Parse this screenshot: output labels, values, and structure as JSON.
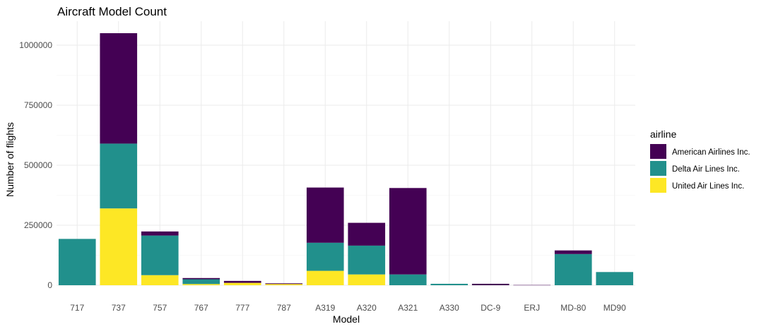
{
  "chart_data": {
    "type": "bar",
    "stacked": true,
    "title": "Aircraft Model Count",
    "xlabel": "Model",
    "ylabel": "Number of flights",
    "ylim": [
      0,
      1100000
    ],
    "yticks": [
      0,
      250000,
      500000,
      750000,
      1000000
    ],
    "ytick_labels": [
      "0",
      "250000",
      "500000",
      "750000",
      "1000000"
    ],
    "grid": true,
    "legend_title": "airline",
    "legend_position": "right",
    "categories": [
      "717",
      "737",
      "757",
      "767",
      "777",
      "787",
      "A319",
      "A320",
      "A321",
      "A330",
      "DC-9",
      "ERJ",
      "MD-80",
      "MD90"
    ],
    "series": [
      {
        "name": "United Air Lines Inc.",
        "color": "#FDE725",
        "values": [
          0,
          320000,
          42000,
          5000,
          10000,
          5000,
          60000,
          45000,
          0,
          0,
          0,
          0,
          0,
          0
        ]
      },
      {
        "name": "Delta Air Lines Inc.",
        "color": "#21908C",
        "values": [
          193000,
          270000,
          165000,
          20000,
          0,
          0,
          117000,
          120000,
          45000,
          6000,
          0,
          0,
          130000,
          55000
        ]
      },
      {
        "name": "American Airlines Inc.",
        "color": "#440154",
        "values": [
          0,
          460000,
          17000,
          5000,
          8000,
          3000,
          230000,
          95000,
          360000,
          0,
          6000,
          1000,
          15000,
          0
        ]
      }
    ],
    "legend_order": [
      "American Airlines Inc.",
      "Delta Air Lines Inc.",
      "United Air Lines Inc."
    ]
  }
}
